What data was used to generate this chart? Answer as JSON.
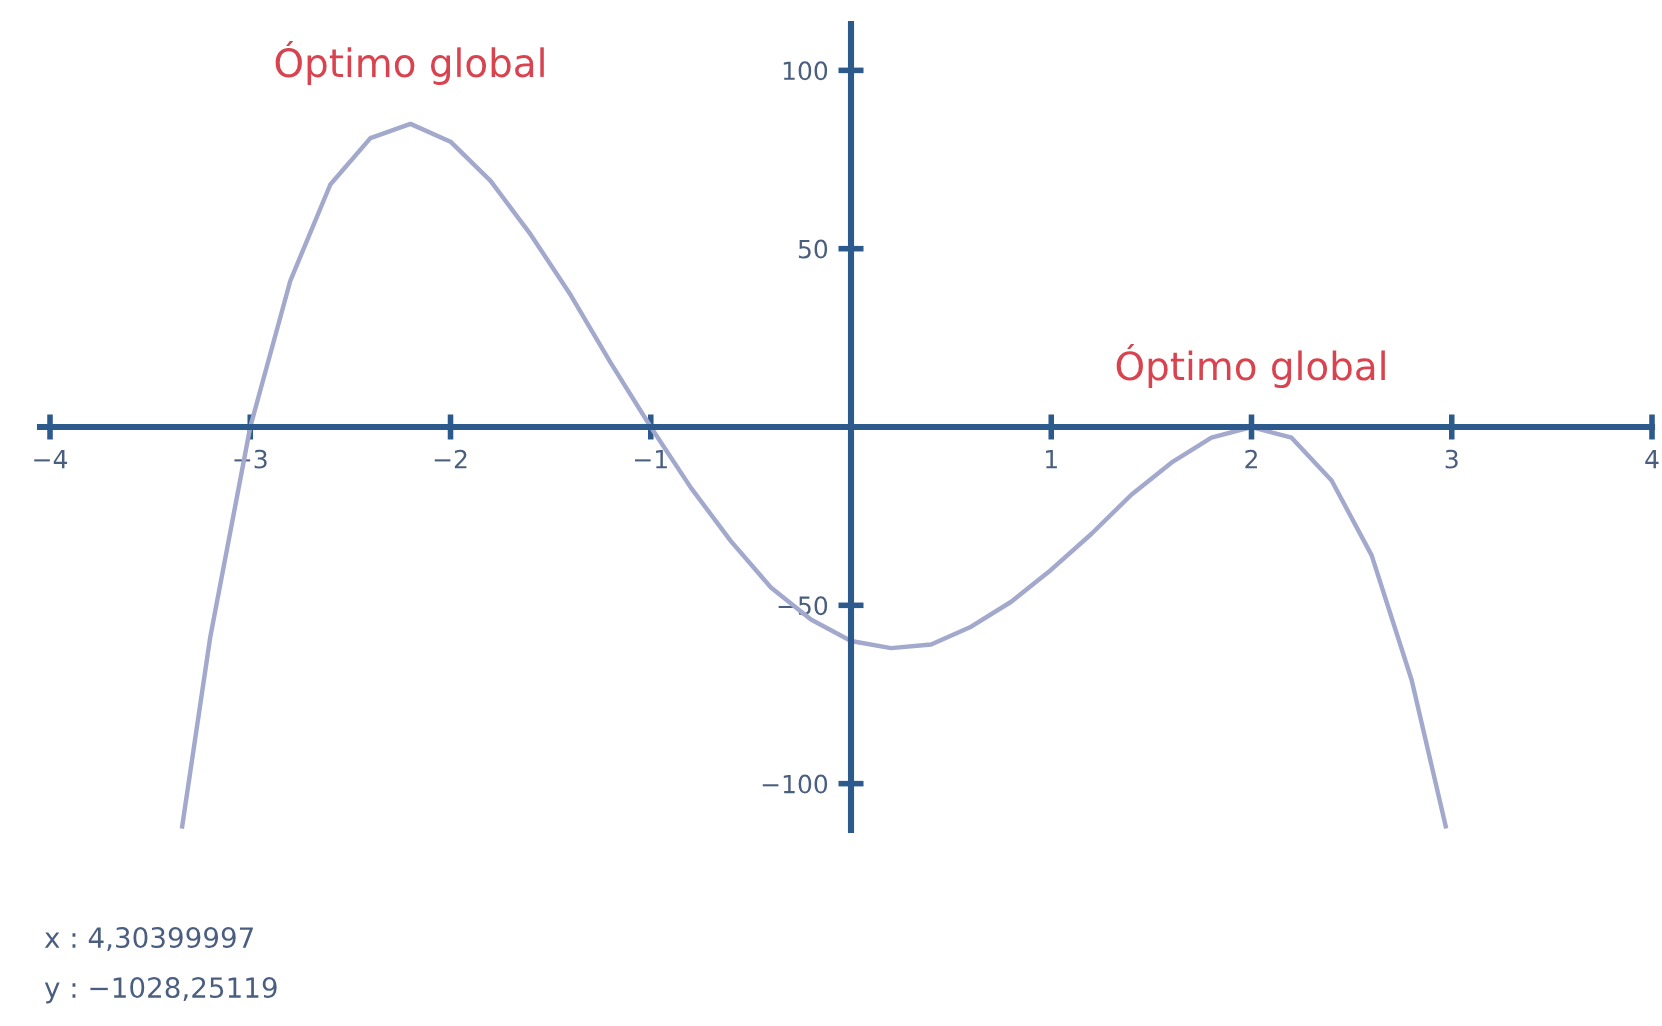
{
  "chart_data": {
    "type": "line",
    "x": [
      -3.34,
      -3.2,
      -3.0,
      -2.8,
      -2.6,
      -2.4,
      -2.2,
      -2.0,
      -1.8,
      -1.6,
      -1.4,
      -1.2,
      -1.0,
      -0.8,
      -0.6,
      -0.4,
      -0.2,
      0,
      0.2,
      0.4,
      0.6,
      0.8,
      1.0,
      1.2,
      1.4,
      1.6,
      1.8,
      2.0,
      2.2,
      2.4,
      2.6,
      2.8,
      2.97
    ],
    "series": [
      {
        "color": "#a3a9cc",
        "values": [
          -112,
          -59,
          0,
          41,
          68,
          81,
          85,
          80,
          69,
          54,
          37,
          18,
          0,
          -17,
          -32,
          -45,
          -54,
          -60,
          -62,
          -61,
          -56,
          -49,
          -40,
          -30,
          -19,
          -10,
          -3,
          0,
          -3,
          -15,
          -36,
          -71,
          -112
        ]
      }
    ],
    "xlim": [
      -4.05,
      4.0
    ],
    "ylim": [
      -113,
      113
    ],
    "xticks": [
      -4,
      -3,
      -2,
      -1,
      {
        "value": 0,
        "label": null
      },
      1,
      2,
      3,
      4
    ],
    "yticks": [
      -100,
      -50,
      {
        "value": 0,
        "label": null
      },
      50,
      100
    ],
    "grid": false,
    "legend": false,
    "marker": "none",
    "line_style": "solid",
    "annotations": [
      {
        "text": "Óptimo global",
        "x": -2.2,
        "y": 85
      },
      {
        "text": "Óptimo global",
        "x": 2.0,
        "y": 0
      },
      "x : 4,30399997",
      "y : −1028,25119"
    ]
  }
}
